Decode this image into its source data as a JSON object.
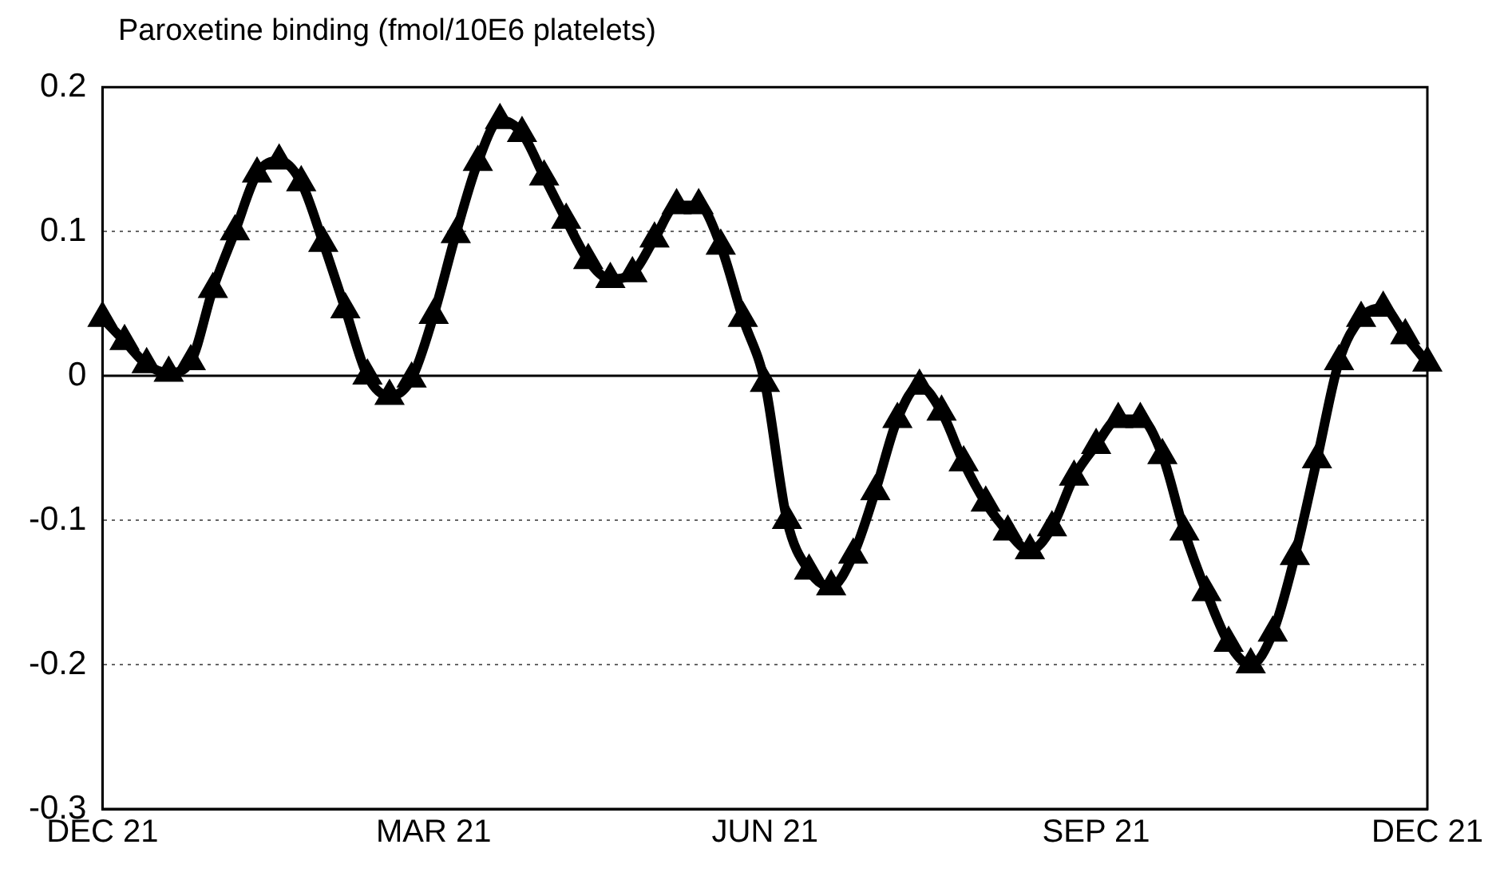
{
  "chart_data": {
    "type": "line",
    "ylabel": "Paroxetine binding (fmol/10E6 platelets)",
    "categories": [
      "DEC 21",
      null,
      null,
      null,
      null,
      null,
      null,
      null,
      null,
      null,
      null,
      null,
      null,
      null,
      null,
      "MAR 21",
      null,
      null,
      null,
      null,
      null,
      null,
      null,
      null,
      null,
      null,
      null,
      null,
      null,
      null,
      "JUN 21",
      null,
      null,
      null,
      null,
      null,
      null,
      null,
      null,
      null,
      null,
      null,
      null,
      null,
      null,
      "SEP 21",
      null,
      null,
      null,
      null,
      null,
      null,
      null,
      null,
      null,
      null,
      null,
      null,
      null,
      null,
      "DEC 21"
    ],
    "ylim": [
      -0.3,
      0.2
    ],
    "yticks": [
      -0.3,
      -0.2,
      -0.1,
      0,
      0.1,
      0.2
    ],
    "grid": "y",
    "marker": "triangle",
    "legend": false,
    "ref_lines": [
      {
        "axis": "y",
        "value": 0,
        "color": "#000000",
        "line_style": "solid"
      }
    ],
    "series": [
      {
        "color": "#000000",
        "values": [
          0.04,
          0.024,
          0.008,
          0.002,
          0.01,
          0.06,
          0.1,
          0.14,
          0.149,
          0.134,
          0.092,
          0.046,
          0,
          -0.014,
          -0.002,
          0.042,
          0.098,
          0.148,
          0.177,
          0.168,
          0.138,
          0.108,
          0.08,
          0.067,
          0.071,
          0.095,
          0.118,
          0.118,
          0.09,
          0.04,
          -0.005,
          -0.1,
          -0.135,
          -0.146,
          -0.124,
          -0.08,
          -0.03,
          -0.007,
          -0.025,
          -0.06,
          -0.088,
          -0.108,
          -0.121,
          -0.105,
          -0.07,
          -0.048,
          -0.03,
          -0.03,
          -0.055,
          -0.108,
          -0.15,
          -0.185,
          -0.2,
          -0.178,
          -0.125,
          -0.058,
          0.01,
          0.04,
          0.047,
          0.028,
          0.009
        ]
      }
    ]
  }
}
